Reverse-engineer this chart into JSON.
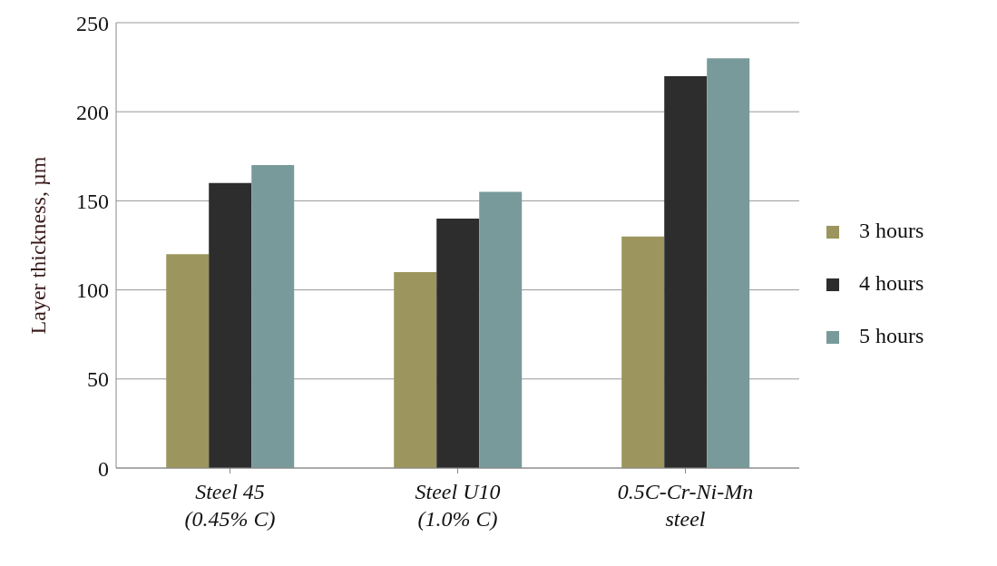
{
  "chart_data": {
    "type": "bar",
    "ylabel": "Layer thickness, µm",
    "categories": [
      "Steel 45\n(0.45% C)",
      "Steel U10\n(1.0% C)",
      "0.5C-Cr-Ni-Mn\nsteel"
    ],
    "series": [
      {
        "name": "3 hours",
        "color": "#9c955d",
        "values": [
          120,
          110,
          130
        ]
      },
      {
        "name": "4 hours",
        "color": "#2d2d2d",
        "values": [
          160,
          140,
          220
        ]
      },
      {
        "name": "5 hours",
        "color": "#789a9a",
        "values": [
          170,
          155,
          230
        ]
      }
    ],
    "ylim": [
      0,
      250
    ],
    "yticks": [
      0,
      50,
      100,
      150,
      200,
      250
    ],
    "grid": "y",
    "legend": "right"
  }
}
